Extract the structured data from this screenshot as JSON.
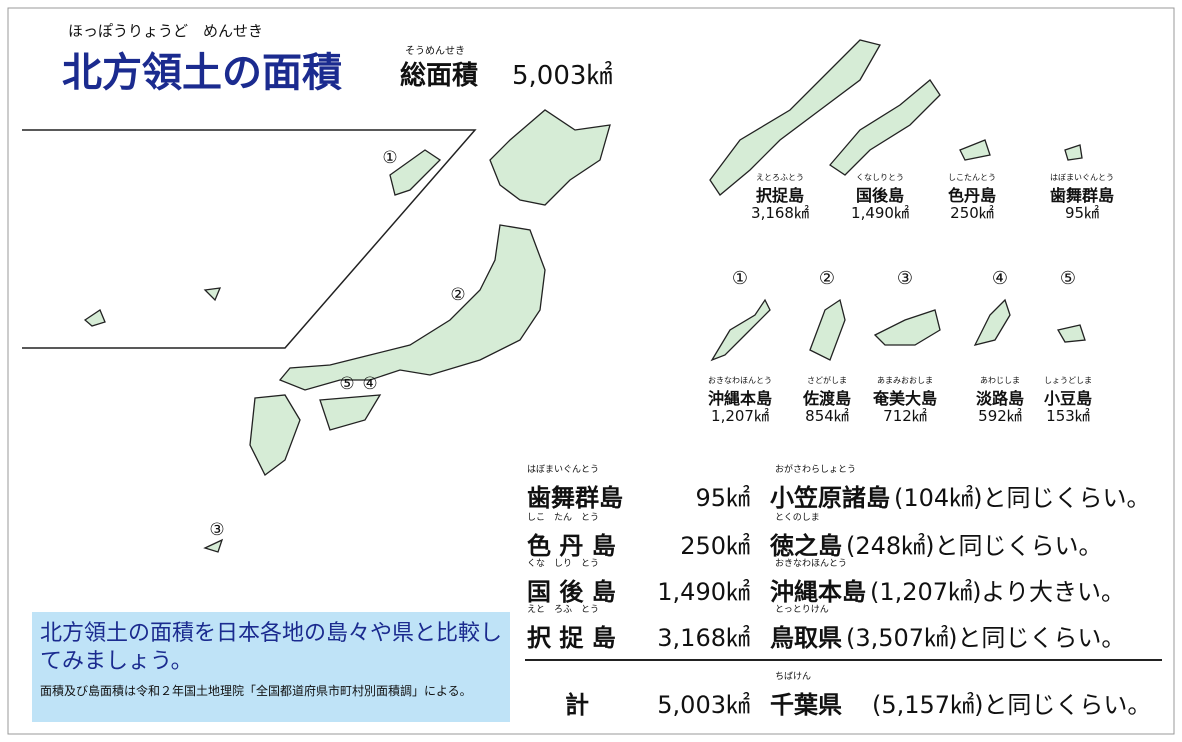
{
  "header": {
    "title_ruby": "ほっぽうりょうど　めんせき",
    "title": "北方領土の面積",
    "total_ruby": "そうめんせき",
    "total_label": "総面積",
    "total_value": "5,003㎢"
  },
  "map": {
    "markers": [
      "①",
      "②",
      "③",
      "⑤",
      "④"
    ]
  },
  "northern_islands": [
    {
      "ruby": "えとろふとう",
      "name": "択捉島",
      "area": "3,168㎢"
    },
    {
      "ruby": "くなしりとう",
      "name": "国後島",
      "area": "1,490㎢"
    },
    {
      "ruby": "しこたんとう",
      "name": "色丹島",
      "area": "250㎢"
    },
    {
      "ruby": "はぼまいぐんとう",
      "name": "歯舞群島",
      "area": "95㎢"
    }
  ],
  "other_islands": [
    {
      "marker": "①",
      "ruby": "おきなわほんとう",
      "name": "沖縄本島",
      "area": "1,207㎢"
    },
    {
      "marker": "②",
      "ruby": "さどがしま",
      "name": "佐渡島",
      "area": "854㎢"
    },
    {
      "marker": "③",
      "ruby": "あまみおおしま",
      "name": "奄美大島",
      "area": "712㎢"
    },
    {
      "marker": "④",
      "ruby": "あわじしま",
      "name": "淡路島",
      "area": "592㎢"
    },
    {
      "marker": "⑤",
      "ruby": "しょうどしま",
      "name": "小豆島",
      "area": "153㎢"
    }
  ],
  "table": {
    "rows": [
      {
        "ruby": "はぼまいぐんとう",
        "name": "歯舞群島",
        "area": "95㎢",
        "compare_ruby": "おがさわらしょとう",
        "compare_name": "小笠原諸島",
        "compare_text": "(104㎢)と同じくらい。"
      },
      {
        "ruby": "しこ　たん　とう",
        "name": "色 丹 島",
        "area": "250㎢",
        "compare_ruby": "とくのしま",
        "compare_name": "徳之島",
        "compare_text": "(248㎢)と同じくらい。"
      },
      {
        "ruby": "くな　しり　とう",
        "name": "国 後 島",
        "area": "1,490㎢",
        "compare_ruby": "おきなわほんとう",
        "compare_name": "沖縄本島",
        "compare_text": "(1,207㎢)より大きい。"
      },
      {
        "ruby": "えと　ろふ　とう",
        "name": "択 捉 島",
        "area": "3,168㎢",
        "compare_ruby": "とっとりけん",
        "compare_name": "鳥取県",
        "compare_text": "(3,507㎢)と同じくらい。"
      }
    ],
    "total": {
      "name": "計",
      "area": "5,003㎢",
      "compare_ruby": "ちばけん",
      "compare_name": "千葉県",
      "compare_text": "(5,157㎢)と同じくらい。"
    }
  },
  "note": {
    "main": "北方領土の面積を日本各地の島々や県と比較してみましょう。",
    "sub": "面積及び島面積は令和２年国土地理院「全国都道府県市町村別面積調」による。"
  }
}
